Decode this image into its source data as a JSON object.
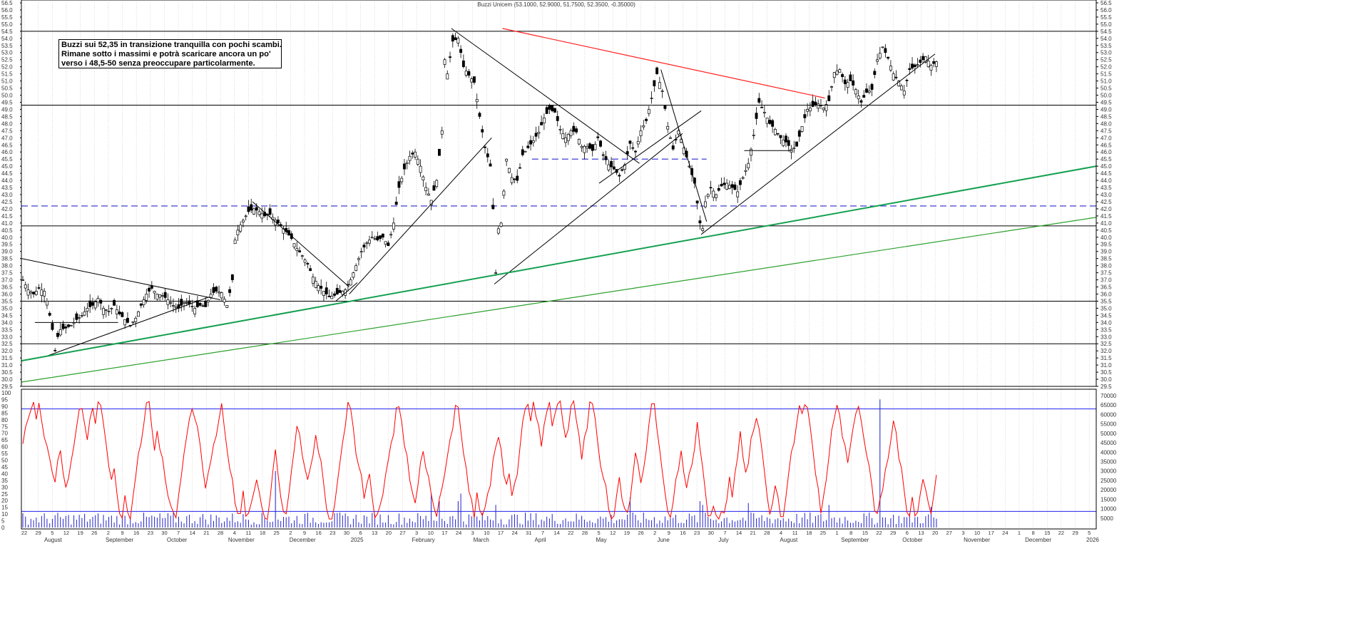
{
  "title": "Buzzi Unicem (53.1000, 52.9000, 51.7500, 52.3500, -0.35000)",
  "annotation": {
    "lines": [
      "Buzzi sui 52,35 in transizione tranquilla con pochi scambi.",
      "Rimane sotto i massimi e potrà scaricare ancora un po'",
      "verso i 48,5-50 senza preoccupare particolarmente."
    ]
  },
  "colors": {
    "candle": "#000000",
    "resistance": "#ff2020",
    "support": "#14a050",
    "support_thin": "#2ca02c",
    "dashed": "#2a2acc",
    "oscillator": "#ff0000",
    "volume": "#2222cc",
    "band": "#2222ee",
    "grid": "#bbbbbb"
  },
  "chart_data": [
    {
      "type": "candlestick",
      "title": "Buzzi Unicem (53.1000, 52.9000, 51.7500, 52.3500, -0.35000)",
      "ylim": [
        29.5,
        56.5
      ],
      "yticks": [
        "56.5",
        "56.0",
        "55.5",
        "55.0",
        "54.5",
        "54.0",
        "53.5",
        "53.0",
        "52.5",
        "52.0",
        "51.5",
        "51.0",
        "50.5",
        "50.0",
        "49.5",
        "49.0",
        "48.5",
        "48.0",
        "47.5",
        "47.0",
        "46.5",
        "46.0",
        "45.5",
        "45.0",
        "44.5",
        "44.0",
        "43.5",
        "43.0",
        "42.5",
        "42.0",
        "41.5",
        "41.0",
        "40.5",
        "40.0",
        "39.5",
        "39.0",
        "38.5",
        "38.0",
        "37.5",
        "37.0",
        "36.5",
        "36.0",
        "35.5",
        "35.0",
        "34.5",
        "34.0",
        "33.5",
        "33.0",
        "32.5",
        "32.0",
        "31.5",
        "31.0",
        "30.5",
        "30.0",
        "29.5"
      ],
      "x_day_labels": [
        "22",
        "29",
        "5",
        "12",
        "19",
        "26",
        "2",
        "9",
        "16",
        "23",
        "30",
        "7",
        "14",
        "21",
        "28",
        "4",
        "11",
        "18",
        "25",
        "2",
        "9",
        "16",
        "23",
        "30",
        "6",
        "13",
        "20",
        "27",
        "3",
        "10",
        "17",
        "24",
        "3",
        "10",
        "17",
        "24",
        "31",
        "7",
        "14",
        "22",
        "28",
        "5",
        "12",
        "19",
        "26",
        "2",
        "9",
        "16",
        "23",
        "30",
        "7",
        "14",
        "21",
        "28",
        "4",
        "11",
        "18",
        "25",
        "1",
        "8",
        "15",
        "22",
        "29",
        "6",
        "13",
        "20",
        "27",
        "3",
        "10",
        "17",
        "24",
        "1",
        "8",
        "15",
        "22",
        "29",
        "5"
      ],
      "months": [
        "August",
        "September",
        "October",
        "November",
        "December",
        "2025",
        "February",
        "March",
        "April",
        "May",
        "June",
        "July",
        "August",
        "September",
        "October",
        "November",
        "December",
        "2026"
      ],
      "horizontal_levels": [
        54.5,
        49.3,
        40.8,
        35.5,
        32.5,
        29.5
      ],
      "dashed_levels": [
        42.2,
        45.5
      ],
      "price_path": [
        [
          0,
          37.0
        ],
        [
          2,
          36.3
        ],
        [
          4,
          36.0
        ],
        [
          6,
          36.4
        ],
        [
          8,
          36.2
        ],
        [
          9,
          35.5
        ],
        [
          10,
          34.5
        ],
        [
          11,
          33.5
        ],
        [
          12,
          32.0
        ],
        [
          13,
          33.0
        ],
        [
          14,
          33.5
        ],
        [
          16,
          33.6
        ],
        [
          18,
          33.8
        ],
        [
          20,
          34.2
        ],
        [
          22,
          34.5
        ],
        [
          24,
          35.0
        ],
        [
          26,
          35.2
        ],
        [
          28,
          35.7
        ],
        [
          30,
          35.0
        ],
        [
          32,
          34.8
        ],
        [
          34,
          35.2
        ],
        [
          36,
          34.6
        ],
        [
          38,
          34.2
        ],
        [
          40,
          33.8
        ],
        [
          42,
          34.3
        ],
        [
          44,
          35.2
        ],
        [
          46,
          36.0
        ],
        [
          48,
          36.4
        ],
        [
          50,
          36.0
        ],
        [
          52,
          35.9
        ],
        [
          54,
          35.6
        ],
        [
          56,
          35.2
        ],
        [
          58,
          35.0
        ],
        [
          60,
          35.4
        ],
        [
          62,
          35.3
        ],
        [
          64,
          35.0
        ],
        [
          66,
          35.2
        ],
        [
          68,
          35.1
        ],
        [
          70,
          36.0
        ],
        [
          72,
          36.2
        ],
        [
          74,
          36.1
        ],
        [
          76,
          35.2
        ],
        [
          78,
          37.0
        ],
        [
          79,
          39.8
        ],
        [
          80,
          40.5
        ],
        [
          82,
          41.2
        ],
        [
          84,
          41.8
        ],
        [
          86,
          42.0
        ],
        [
          88,
          41.8
        ],
        [
          90,
          41.5
        ],
        [
          92,
          41.6
        ],
        [
          94,
          41.2
        ],
        [
          96,
          40.8
        ],
        [
          98,
          40.4
        ],
        [
          100,
          39.9
        ],
        [
          102,
          39.2
        ],
        [
          104,
          38.7
        ],
        [
          106,
          38.1
        ],
        [
          108,
          37.2
        ],
        [
          110,
          36.6
        ],
        [
          112,
          36.2
        ],
        [
          114,
          35.8
        ],
        [
          116,
          35.9
        ],
        [
          118,
          36.1
        ],
        [
          120,
          36.3
        ],
        [
          122,
          37.0
        ],
        [
          124,
          38.0
        ],
        [
          126,
          39.0
        ],
        [
          128,
          39.6
        ],
        [
          130,
          40.0
        ],
        [
          132,
          39.8
        ],
        [
          134,
          40.0
        ],
        [
          136,
          39.4
        ],
        [
          138,
          41.0
        ],
        [
          139,
          42.3
        ],
        [
          140,
          43.5
        ],
        [
          142,
          44.8
        ],
        [
          144,
          45.7
        ],
        [
          146,
          46.0
        ],
        [
          148,
          45.0
        ],
        [
          150,
          43.5
        ],
        [
          152,
          42.6
        ],
        [
          154,
          44.0
        ],
        [
          156,
          47.5
        ],
        [
          157,
          52.5
        ],
        [
          158,
          51.5
        ],
        [
          160,
          53.8
        ],
        [
          162,
          54.0
        ],
        [
          164,
          52.0
        ],
        [
          166,
          51.4
        ],
        [
          168,
          50.9
        ],
        [
          170,
          48.5
        ],
        [
          172,
          46.3
        ],
        [
          174,
          45.0
        ],
        [
          175,
          42.0
        ],
        [
          176,
          37.5
        ],
        [
          177,
          40.6
        ],
        [
          178,
          41.0
        ],
        [
          180,
          45.5
        ],
        [
          182,
          44.2
        ],
        [
          184,
          44.0
        ],
        [
          186,
          45.8
        ],
        [
          188,
          46.3
        ],
        [
          190,
          46.8
        ],
        [
          192,
          47.4
        ],
        [
          194,
          48.4
        ],
        [
          196,
          49.0
        ],
        [
          198,
          48.8
        ],
        [
          200,
          47.6
        ],
        [
          202,
          47.0
        ],
        [
          204,
          47.5
        ],
        [
          206,
          47.4
        ],
        [
          208,
          46.4
        ],
        [
          210,
          46.4
        ],
        [
          212,
          46.1
        ],
        [
          214,
          47.0
        ],
        [
          216,
          45.8
        ],
        [
          218,
          45.1
        ],
        [
          220,
          44.8
        ],
        [
          222,
          44.3
        ],
        [
          224,
          45.1
        ],
        [
          226,
          46.6
        ],
        [
          228,
          46.0
        ],
        [
          230,
          47.5
        ],
        [
          232,
          48.2
        ],
        [
          234,
          49.8
        ],
        [
          236,
          51.5
        ],
        [
          238,
          50.3
        ],
        [
          240,
          47.8
        ],
        [
          242,
          46.2
        ],
        [
          244,
          47.5
        ],
        [
          246,
          46.3
        ],
        [
          248,
          45.0
        ],
        [
          250,
          43.8
        ],
        [
          252,
          41.0
        ],
        [
          253,
          40.6
        ],
        [
          254,
          42.5
        ],
        [
          256,
          43.5
        ],
        [
          258,
          43.0
        ],
        [
          260,
          43.6
        ],
        [
          262,
          43.8
        ],
        [
          264,
          43.5
        ],
        [
          266,
          43.2
        ],
        [
          268,
          44.2
        ],
        [
          270,
          45.2
        ],
        [
          272,
          47.2
        ],
        [
          274,
          49.5
        ],
        [
          276,
          48.8
        ],
        [
          278,
          48.0
        ],
        [
          280,
          47.6
        ],
        [
          282,
          47.0
        ],
        [
          284,
          46.7
        ],
        [
          286,
          46.2
        ],
        [
          288,
          46.4
        ],
        [
          290,
          47.8
        ],
        [
          292,
          49.0
        ],
        [
          294,
          49.2
        ],
        [
          296,
          49.4
        ],
        [
          298,
          49.1
        ],
        [
          300,
          49.6
        ],
        [
          302,
          51.6
        ],
        [
          304,
          51.8
        ],
        [
          306,
          50.8
        ],
        [
          308,
          51.0
        ],
        [
          310,
          50.4
        ],
        [
          312,
          49.5
        ],
        [
          314,
          50.2
        ],
        [
          316,
          50.4
        ],
        [
          318,
          52.5
        ],
        [
          320,
          53.4
        ],
        [
          322,
          52.6
        ],
        [
          324,
          51.5
        ],
        [
          326,
          51.0
        ],
        [
          328,
          50.3
        ],
        [
          330,
          51.8
        ],
        [
          332,
          52.0
        ],
        [
          334,
          52.3
        ],
        [
          336,
          52.7
        ],
        [
          338,
          52.1
        ],
        [
          340,
          52.35
        ]
      ],
      "lines": [
        {
          "name": "resistance",
          "color": "resistance",
          "points": [
            [
              179,
              54.7
            ],
            [
              299,
              49.8
            ]
          ]
        },
        {
          "name": "support-long",
          "color": "support",
          "points": [
            [
              0,
              31.3
            ],
            [
              400,
              45.0
            ]
          ]
        },
        {
          "name": "support-long-2",
          "color": "support_thin",
          "points": [
            [
              0,
              29.8
            ],
            [
              400,
              41.4
            ]
          ]
        }
      ],
      "volume_max": 70000,
      "oscillator_band": [
        88,
        12
      ]
    }
  ],
  "oscillator": {
    "yticks": [
      "100",
      "95",
      "90",
      "85",
      "80",
      "75",
      "70",
      "65",
      "60",
      "55",
      "50",
      "45",
      "40",
      "35",
      "30",
      "25",
      "20",
      "15",
      "10",
      "5",
      "0"
    ],
    "volume_ticks": [
      "70000",
      "65000",
      "60000",
      "55000",
      "50000",
      "45000",
      "40000",
      "35000",
      "30000",
      "25000",
      "20000",
      "15000",
      "10000",
      "5000"
    ]
  }
}
